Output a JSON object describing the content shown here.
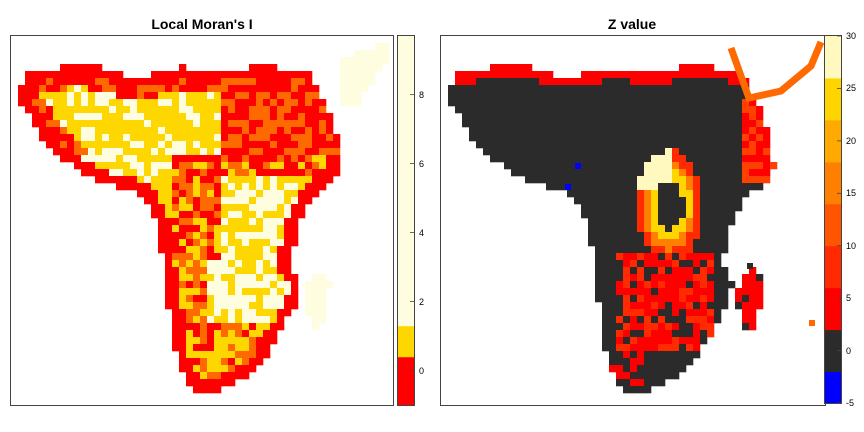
{
  "chart_data": [
    {
      "type": "heatmap",
      "title": "Local Moran's I",
      "legend": {
        "position": "right",
        "ticks": [
          "0",
          "2",
          "4",
          "6",
          "8"
        ],
        "tick_values": [
          0,
          2,
          4,
          6,
          8
        ],
        "range": [
          -1.0,
          9.7
        ],
        "breaks": [
          {
            "from": -1.0,
            "to": 0.4,
            "color": "#ff0000"
          },
          {
            "from": 0.4,
            "to": 1.3,
            "color": "#ffd700"
          },
          {
            "from": 1.3,
            "to": 9.7,
            "color": "#fffde0"
          }
        ]
      }
    },
    {
      "type": "heatmap",
      "title": "Z value",
      "legend": {
        "position": "right",
        "ticks": [
          "-5",
          "0",
          "5",
          "10",
          "15",
          "20",
          "25",
          "30"
        ],
        "tick_values": [
          -5,
          0,
          5,
          10,
          15,
          20,
          25,
          30
        ],
        "range": [
          -5,
          30
        ],
        "breaks": [
          {
            "from": -5,
            "to": -2,
            "color": "#0000ff"
          },
          {
            "from": -2,
            "to": 2,
            "color": "#2b2b2b"
          },
          {
            "from": 2,
            "to": 6,
            "color": "#ff0000"
          },
          {
            "from": 6,
            "to": 10,
            "color": "#ff2a00"
          },
          {
            "from": 10,
            "to": 14,
            "color": "#ff5500"
          },
          {
            "from": 14,
            "to": 18,
            "color": "#ff8000"
          },
          {
            "from": 18,
            "to": 22,
            "color": "#ffaa00"
          },
          {
            "from": 22,
            "to": 26,
            "color": "#ffd500"
          },
          {
            "from": 26,
            "to": 30,
            "color": "#fff9c0"
          }
        ]
      }
    }
  ]
}
